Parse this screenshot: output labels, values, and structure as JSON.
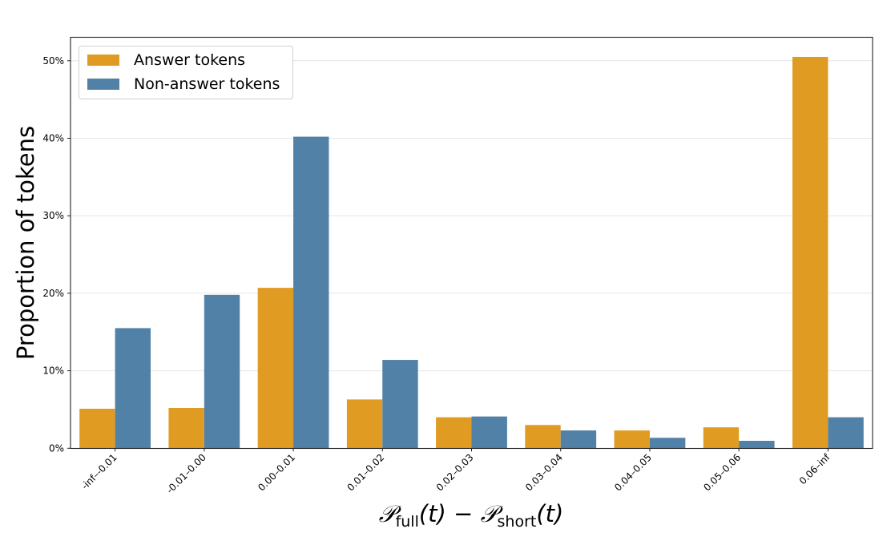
{
  "chart_data": {
    "type": "bar",
    "title": "",
    "xlabel": "P_full(t) - P_short(t)",
    "xlabel_parts": {
      "P1": "𝒫",
      "sub1": "full",
      "t1": "(t) − ",
      "P2": "𝒫",
      "sub2": "short",
      "t2": "(t)"
    },
    "ylabel": "Proportion of tokens",
    "ylim": [
      0,
      53
    ],
    "yticks": [
      0,
      10,
      20,
      30,
      40,
      50
    ],
    "ytick_labels": [
      "0%",
      "10%",
      "20%",
      "30%",
      "40%",
      "50%"
    ],
    "grid": "y",
    "legend_position": "upper left",
    "categories": [
      "-inf–-0.01",
      "-0.01–0.00",
      "0.00–0.01",
      "0.01–0.02",
      "0.02–0.03",
      "0.03–0.04",
      "0.04–0.05",
      "0.05–0.06",
      "0.06–inf"
    ],
    "series": [
      {
        "name": "Answer tokens",
        "color": "#E09C22",
        "values": [
          5.1,
          5.2,
          20.7,
          6.3,
          4.0,
          3.0,
          2.3,
          2.7,
          50.5
        ]
      },
      {
        "name": "Non-answer tokens",
        "color": "#5281A8",
        "values": [
          15.5,
          19.8,
          40.2,
          11.4,
          4.1,
          2.3,
          1.35,
          0.96,
          4.0
        ]
      }
    ]
  }
}
